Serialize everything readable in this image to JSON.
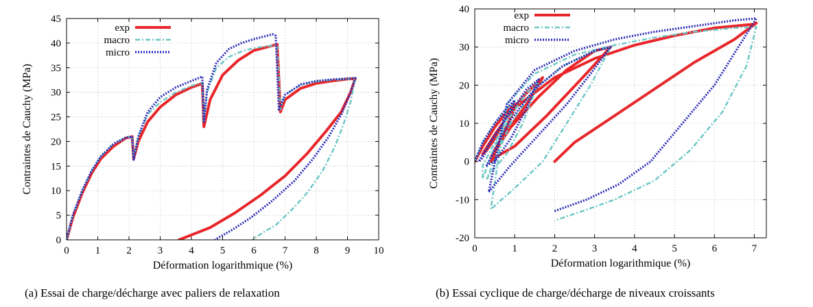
{
  "figure": {
    "caption_a": "(a) Essai de charge/décharge avec paliers de relaxation",
    "caption_b": "(b) Essai cyclique de charge/décharge de niveaux croissants"
  },
  "colors": {
    "exp": "#e8262a",
    "macro": "#6cc6c6",
    "micro": "#2b2bb8",
    "grid": "#aaaaaa"
  },
  "chart_data": [
    {
      "type": "line",
      "title": "",
      "xlabel": "Déformation logarithmique (%)",
      "ylabel": "Contraintes de Cauchy (MPa)",
      "xlim": [
        0,
        10
      ],
      "ylim": [
        0,
        45
      ],
      "xticks": [
        0,
        1,
        2,
        3,
        4,
        5,
        6,
        7,
        8,
        9,
        10
      ],
      "yticks": [
        0,
        5,
        10,
        15,
        20,
        25,
        30,
        35,
        40,
        45
      ],
      "grid": true,
      "legend_position": "top-left",
      "series": [
        {
          "name": "exp",
          "style": "solid",
          "x": [
            0,
            0.2,
            0.5,
            0.8,
            1.1,
            1.5,
            1.9,
            2.1,
            2.15,
            2.3,
            2.6,
            3.0,
            3.5,
            4.0,
            4.35,
            4.4,
            4.6,
            5.0,
            5.5,
            6.0,
            6.6,
            6.75,
            6.85,
            7.0,
            7.5,
            8.0,
            8.5,
            9.0,
            9.25,
            9.1,
            8.8,
            8.3,
            7.7,
            7.0,
            6.2,
            5.4,
            4.6,
            4.0,
            3.6
          ],
          "y": [
            0,
            4.5,
            9.5,
            13.5,
            16.5,
            19,
            20.7,
            21,
            16.5,
            20,
            24,
            27,
            29.5,
            31,
            31.8,
            23,
            28.5,
            33.5,
            36.5,
            38.5,
            39.5,
            39.7,
            26,
            28.5,
            30.8,
            31.8,
            32.3,
            32.7,
            32.8,
            30,
            26,
            22,
            17.5,
            13,
            9,
            5.5,
            2.5,
            1,
            0
          ]
        },
        {
          "name": "macro",
          "style": "dashed",
          "x": [
            0,
            0.2,
            0.5,
            0.8,
            1.1,
            1.5,
            1.9,
            2.1,
            2.15,
            2.3,
            2.6,
            3.0,
            3.5,
            4.0,
            4.35,
            4.4,
            4.5,
            4.8,
            5.2,
            5.6,
            6.0,
            6.6,
            6.75,
            6.85,
            7.0,
            7.5,
            8.0,
            8.5,
            9.0,
            9.25,
            9.1,
            8.9,
            8.6,
            8.2,
            7.7,
            7.2,
            6.7,
            6.3,
            5.95
          ],
          "y": [
            0,
            5,
            10,
            14,
            17,
            19.5,
            20.8,
            21,
            16.8,
            21,
            25.5,
            28,
            30,
            31.3,
            32,
            24,
            30,
            35,
            37.2,
            38.3,
            39,
            39.5,
            39.6,
            26.5,
            29.5,
            31.5,
            32.2,
            32.5,
            32.7,
            32.8,
            28,
            24,
            19,
            14,
            9.5,
            6,
            3,
            1.5,
            0
          ]
        },
        {
          "name": "micro",
          "style": "dotted",
          "x": [
            0,
            0.2,
            0.5,
            0.8,
            1.1,
            1.5,
            1.9,
            2.1,
            2.15,
            2.3,
            2.6,
            3.0,
            3.5,
            4.0,
            4.35,
            4.4,
            4.5,
            4.8,
            5.2,
            5.6,
            6.0,
            6.6,
            6.7,
            6.8,
            7.0,
            7.5,
            8.0,
            8.5,
            9.0,
            9.25,
            9.1,
            8.8,
            8.4,
            7.9,
            7.3,
            6.6,
            5.9,
            5.3,
            4.75
          ],
          "y": [
            0,
            5,
            10,
            14,
            17,
            19.5,
            20.8,
            21,
            16.3,
            21,
            26,
            29,
            31,
            32.3,
            33.2,
            24,
            30.5,
            36,
            38.8,
            40,
            40.8,
            41.8,
            41.5,
            26.5,
            29.5,
            31.6,
            32.3,
            32.6,
            32.8,
            32.9,
            30,
            25.5,
            21,
            16.5,
            12,
            8,
            4.5,
            2,
            0
          ]
        }
      ]
    },
    {
      "type": "line",
      "title": "",
      "xlabel": "Déformation logarithmique (%)",
      "ylabel": "Contraintes de Cauchy (MPa)",
      "xlim": [
        0,
        7.3
      ],
      "ylim": [
        -20,
        40
      ],
      "xticks": [
        0,
        1,
        2,
        3,
        4,
        5,
        6,
        7
      ],
      "yticks": [
        -20,
        -10,
        0,
        10,
        20,
        30,
        40
      ],
      "grid": true,
      "legend_position": "top-left",
      "series": [
        {
          "name": "exp",
          "style": "solid",
          "x": [
            0,
            0.2,
            0.5,
            0.8,
            1.0,
            0.7,
            0.5,
            0.3,
            0.2,
            0.5,
            0.9,
            1.3,
            1.7,
            1.3,
            0.8,
            0.5,
            0.4,
            0.9,
            1.6,
            2.3,
            3.0,
            3.4,
            2.7,
            1.8,
            1.0,
            0.5,
            0.4,
            1.0,
            2.0,
            3.0,
            4.0,
            5.0,
            6.0,
            7.0,
            7.05,
            6.5,
            5.5,
            4.5,
            3.5,
            2.5,
            2.0
          ],
          "y": [
            0,
            4,
            9,
            13,
            15,
            10,
            6,
            3,
            2,
            7,
            13,
            18,
            22,
            15,
            8,
            3,
            1,
            9,
            17,
            24,
            29,
            30,
            22,
            12,
            4,
            1,
            0,
            14,
            22,
            27,
            30.5,
            33,
            35,
            36,
            36.3,
            32,
            26,
            19,
            12,
            5,
            0
          ]
        },
        {
          "name": "macro",
          "style": "dashed",
          "x": [
            0,
            0.2,
            0.5,
            0.8,
            1.0,
            0.7,
            0.4,
            0.2,
            0.2,
            0.5,
            0.9,
            1.3,
            1.6,
            1.2,
            0.8,
            0.4,
            0.3,
            0.9,
            1.5,
            2.2,
            3.0,
            3.4,
            2.9,
            2.3,
            1.7,
            1.0,
            0.4,
            0.8,
            1.5,
            2.5,
            3.5,
            4.5,
            5.5,
            6.5,
            7.05,
            6.8,
            6.2,
            5.4,
            4.5,
            3.5,
            2.7,
            2.0
          ],
          "y": [
            0,
            5,
            10,
            14,
            16,
            9,
            3,
            -1,
            -4.5,
            4,
            12,
            18,
            21,
            10,
            2,
            -3,
            -4.5,
            10,
            19,
            25,
            29,
            30,
            20,
            10,
            0,
            -7,
            -12.5,
            15,
            23,
            28,
            30.5,
            32.5,
            34,
            35,
            35.3,
            25,
            13,
            3,
            -5,
            -10,
            -13,
            -15.5
          ]
        },
        {
          "name": "micro",
          "style": "dotted",
          "x": [
            0,
            0.2,
            0.5,
            0.8,
            1.0,
            0.7,
            0.4,
            0.2,
            0.1,
            0.5,
            0.9,
            1.3,
            1.6,
            1.3,
            0.9,
            0.5,
            0.3,
            0.9,
            1.5,
            2.2,
            3.0,
            3.4,
            2.9,
            2.3,
            1.6,
            0.9,
            0.35,
            0.8,
            1.5,
            2.5,
            3.5,
            4.5,
            5.5,
            6.5,
            7.05,
            6.6,
            6.0,
            5.2,
            4.4,
            3.6,
            2.8,
            2.0
          ],
          "y": [
            0,
            5,
            10,
            14,
            16,
            10,
            5,
            1,
            0,
            7,
            13,
            19,
            21.5,
            14,
            6,
            0,
            -1,
            11,
            19,
            25,
            29,
            30,
            23,
            15,
            7,
            -1,
            -8,
            15,
            24,
            29,
            32,
            34,
            35.5,
            37,
            37.5,
            30,
            20,
            10,
            0,
            -6,
            -10,
            -13
          ]
        }
      ]
    }
  ]
}
